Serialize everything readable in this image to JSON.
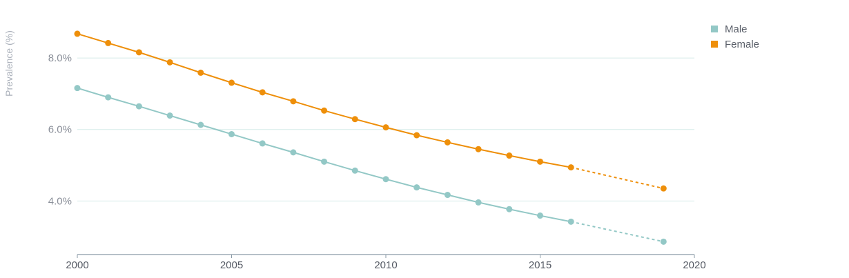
{
  "chart_data": {
    "type": "line",
    "ylabel": "Prevalence (%)",
    "xlim": [
      2000,
      2020
    ],
    "ylim": [
      2.5,
      9.2
    ],
    "y_ticks": [
      {
        "value": 4.0,
        "label": "4.0%"
      },
      {
        "value": 6.0,
        "label": "6.0%"
      },
      {
        "value": 8.0,
        "label": "8.0%"
      }
    ],
    "x_ticks": [
      {
        "value": 2000,
        "label": "2000"
      },
      {
        "value": 2005,
        "label": "2005"
      },
      {
        "value": 2010,
        "label": "2010"
      },
      {
        "value": 2015,
        "label": "2015"
      },
      {
        "value": 2020,
        "label": "2020"
      }
    ],
    "grid": "horizontal",
    "legend_position": "top-right",
    "x": [
      2000,
      2001,
      2002,
      2003,
      2004,
      2005,
      2006,
      2007,
      2008,
      2009,
      2010,
      2011,
      2012,
      2013,
      2014,
      2015,
      2016,
      2019
    ],
    "projection_start": 2016,
    "series": [
      {
        "name": "Male",
        "color": "#93c8c6",
        "values": [
          7.16,
          6.9,
          6.65,
          6.39,
          6.13,
          5.87,
          5.61,
          5.36,
          5.1,
          4.85,
          4.61,
          4.38,
          4.17,
          3.96,
          3.77,
          3.59,
          3.42,
          2.86
        ]
      },
      {
        "name": "Female",
        "color": "#ee8f0a",
        "values": [
          8.68,
          8.42,
          8.16,
          7.88,
          7.59,
          7.31,
          7.04,
          6.79,
          6.53,
          6.29,
          6.06,
          5.84,
          5.64,
          5.45,
          5.27,
          5.1,
          4.94,
          4.35
        ]
      }
    ]
  }
}
